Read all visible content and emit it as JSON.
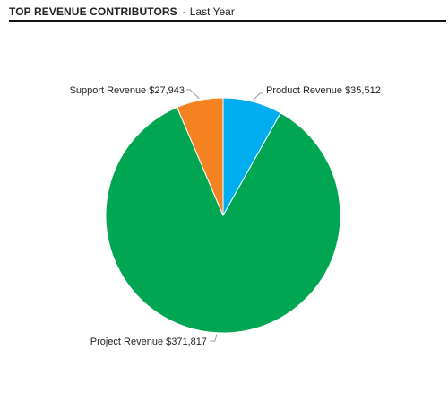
{
  "header": {
    "title": "TOP REVENUE CONTRIBUTORS",
    "separator": "-",
    "subtitle": "Last Year"
  },
  "chart_data": {
    "type": "pie",
    "title": "TOP REVENUE CONTRIBUTORS",
    "subtitle": "Last Year",
    "slices": [
      {
        "label": "Product Revenue",
        "value": 35512,
        "display": "Product Revenue $35,512",
        "color": "#00AEEF"
      },
      {
        "label": "Project Revenue",
        "value": 371817,
        "display": "Project Revenue $371,817",
        "color": "#00A651"
      },
      {
        "label": "Support Revenue",
        "value": 27943,
        "display": "Support Revenue $27,943",
        "color": "#F58220"
      }
    ],
    "start": "12 o'clock",
    "direction": "clockwise",
    "legend": "none"
  }
}
